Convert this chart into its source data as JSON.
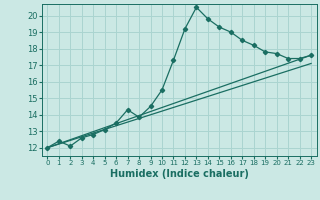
{
  "xlabel": "Humidex (Indice chaleur)",
  "bg_color": "#cbe8e4",
  "grid_color": "#aad4d0",
  "line_color": "#1a6e62",
  "xlim": [
    -0.5,
    23.5
  ],
  "ylim": [
    11.5,
    20.7
  ],
  "xticks": [
    0,
    1,
    2,
    3,
    4,
    5,
    6,
    7,
    8,
    9,
    10,
    11,
    12,
    13,
    14,
    15,
    16,
    17,
    18,
    19,
    20,
    21,
    22,
    23
  ],
  "yticks": [
    12,
    13,
    14,
    15,
    16,
    17,
    18,
    19,
    20
  ],
  "line1_x": [
    0,
    1,
    2,
    3,
    4,
    5,
    6,
    7,
    8,
    9,
    10,
    11,
    12,
    13,
    14,
    15,
    16,
    17,
    18,
    19,
    20,
    21,
    22,
    23
  ],
  "line1_y": [
    12.0,
    12.4,
    12.1,
    12.6,
    12.8,
    13.1,
    13.5,
    14.3,
    13.85,
    14.5,
    15.5,
    17.3,
    19.2,
    20.5,
    19.8,
    19.3,
    19.0,
    18.5,
    18.2,
    17.8,
    17.7,
    17.4,
    17.4,
    17.6
  ],
  "line2_x": [
    0,
    23
  ],
  "line2_y": [
    12.0,
    17.6
  ],
  "line3_x": [
    0,
    23
  ],
  "line3_y": [
    12.0,
    17.1
  ]
}
